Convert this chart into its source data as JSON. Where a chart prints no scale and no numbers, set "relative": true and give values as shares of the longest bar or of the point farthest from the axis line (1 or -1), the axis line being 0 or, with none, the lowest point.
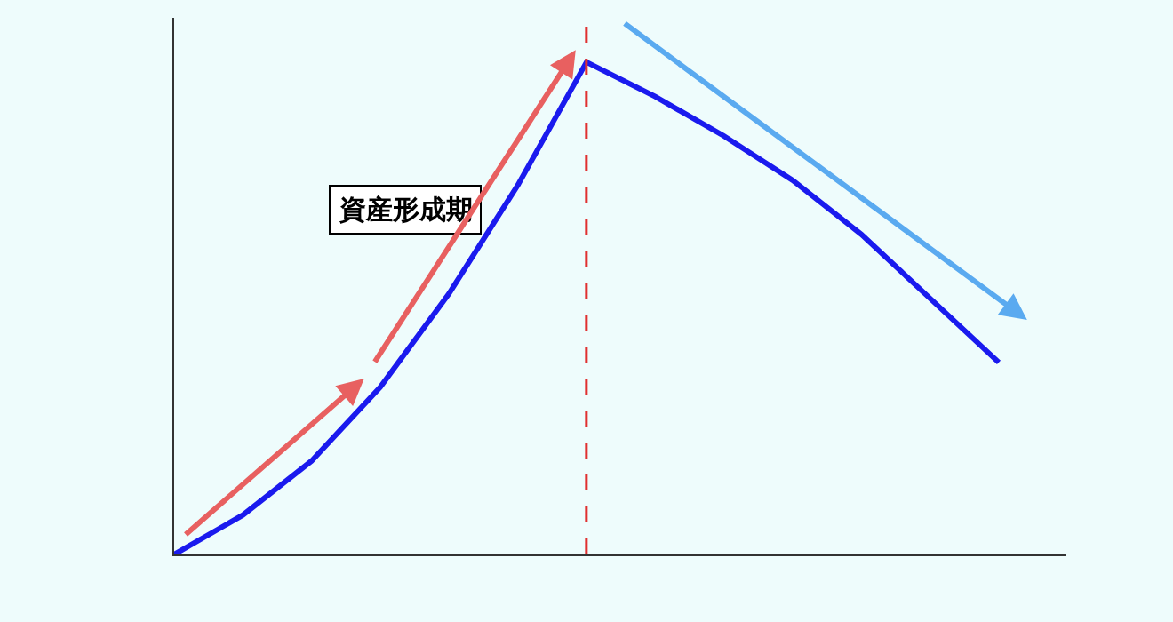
{
  "chart_data": {
    "type": "line",
    "relative": true,
    "categories": [
      null,
      null,
      null,
      null,
      null,
      null,
      null,
      null,
      null,
      null,
      null,
      null,
      null
    ],
    "series": [
      {
        "color": "#1a1aee",
        "values": [
          0,
          0.08,
          0.19,
          0.34,
          0.53,
          0.75,
          1,
          0.93,
          0.85,
          0.76,
          0.65,
          0.52,
          0.39
        ]
      }
    ],
    "annotations": [
      "資産形成期"
    ],
    "grid": false,
    "marker": "none",
    "line_style": "solid"
  }
}
